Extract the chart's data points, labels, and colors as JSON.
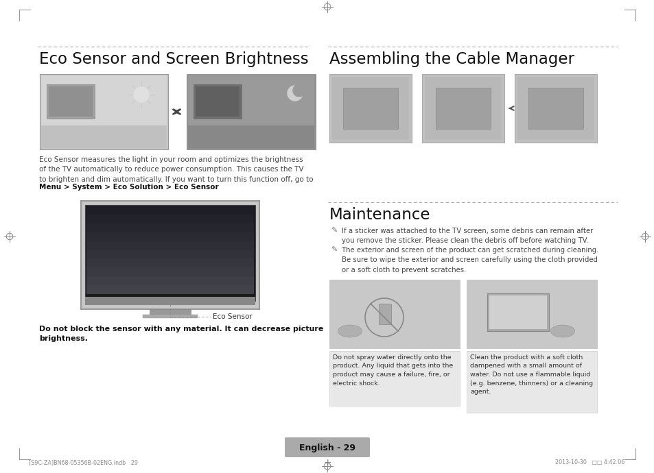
{
  "bg_color": "#ffffff",
  "left_title": "Eco Sensor and Screen Brightness",
  "right_title": "Assembling the Cable Manager",
  "right_title2": "Maintenance",
  "eco_desc": "Eco Sensor measures the light in your room and optimizes the brightness\nof the TV automatically to reduce power consumption. This causes the TV\nto brighten and dim automatically. If you want to turn this function off, go to",
  "eco_bold": "Menu > System > Eco Solution > Eco Sensor",
  "eco_label": "Eco Sensor",
  "eco_warning": "Do not block the sensor with any material. It can decrease picture\nbrightness.",
  "maint_bullet1": "If a sticker was attached to the TV screen, some debris can remain after\nyou remove the sticker. Please clean the debris off before watching TV.",
  "maint_bullet2": "The exterior and screen of the product can get scratched during cleaning.\nBe sure to wipe the exterior and screen carefully using the cloth provided\nor a soft cloth to prevent scratches.",
  "maint_caption1": "Do not spray water directly onto the\nproduct. Any liquid that gets into the\nproduct may cause a failure, fire, or\nelectric shock.",
  "maint_caption2": "Clean the product with a soft cloth\ndampened with a small amount of\nwater. Do not use a flammable liquid\n(e.g. benzene, thinners) or a cleaning\nagent.",
  "footer_text": "English - 29",
  "footer_file": "[S9C-ZA]BN68-05356B-02ENG.indb   29",
  "footer_date": "2013-10-30   □□ 4:42:06",
  "divider_color": "#aaaaaa",
  "text_color": "#333333",
  "title_color": "#111111",
  "footer_bg": "#aaaaaa",
  "caption_box_color": "#e8e8e8"
}
